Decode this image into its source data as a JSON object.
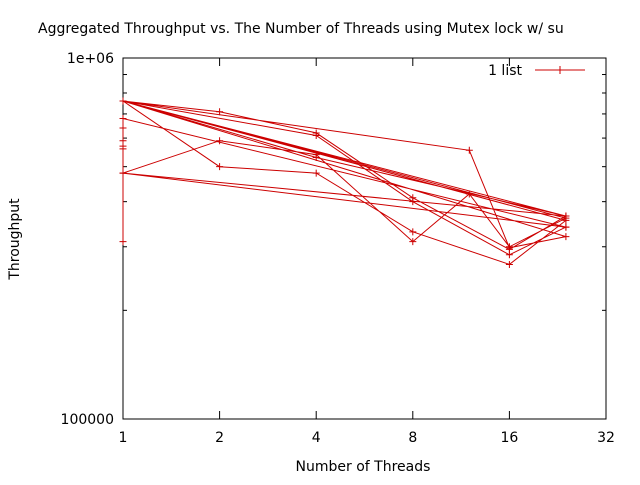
{
  "chart_data": {
    "type": "line",
    "title": "Aggregated Throughput vs. The Number of Threads using Mutex lock w/ su",
    "xlabel": "Number of Threads",
    "ylabel": "Throughput",
    "x_scale": "log2",
    "y_scale": "log10",
    "xlim": [
      1,
      32
    ],
    "ylim": [
      100000,
      1000000
    ],
    "x_ticks": [
      {
        "value": 1,
        "label": "1"
      },
      {
        "value": 2,
        "label": "2"
      },
      {
        "value": 4,
        "label": "4"
      },
      {
        "value": 8,
        "label": "8"
      },
      {
        "value": 16,
        "label": "16"
      },
      {
        "value": 32,
        "label": "32"
      }
    ],
    "y_ticks": [
      {
        "value": 100000,
        "label": "100000"
      },
      {
        "value": 1000000,
        "label": "1e+06"
      }
    ],
    "grid": false,
    "legend": {
      "position": "top-right",
      "entries": [
        "1 list"
      ]
    },
    "color": "#cc0000",
    "series": [
      {
        "name": "1 list",
        "points": [
          [
            1,
            760000
          ],
          [
            2,
            710000
          ],
          [
            4,
            620000
          ],
          [
            8,
            410000
          ],
          [
            16,
            295000
          ],
          [
            24,
            365000
          ],
          [
            1,
            760000
          ],
          [
            2,
            500000
          ],
          [
            4,
            480000
          ],
          [
            8,
            330000
          ],
          [
            16,
            268000
          ],
          [
            24,
            355000
          ],
          [
            1,
            760000
          ],
          [
            4,
            610000
          ],
          [
            8,
            400000
          ],
          [
            16,
            285000
          ],
          [
            24,
            340000
          ],
          [
            1,
            480000
          ],
          [
            2,
            590000
          ],
          [
            4,
            540000
          ],
          [
            8,
            310000
          ],
          [
            12,
            420000
          ],
          [
            16,
            300000
          ],
          [
            24,
            360000
          ],
          [
            1,
            760000
          ],
          [
            12,
            555000
          ],
          [
            16,
            298000
          ],
          [
            24,
            320000
          ],
          [
            1,
            760000
          ],
          [
            4,
            530000
          ],
          [
            24,
            365000
          ],
          [
            1,
            480000
          ],
          [
            24,
            340000
          ],
          [
            1,
            680000
          ],
          [
            1,
            640000
          ],
          [
            1,
            590000
          ],
          [
            1,
            570000
          ],
          [
            1,
            560000
          ],
          [
            1,
            310000
          ]
        ]
      }
    ]
  }
}
